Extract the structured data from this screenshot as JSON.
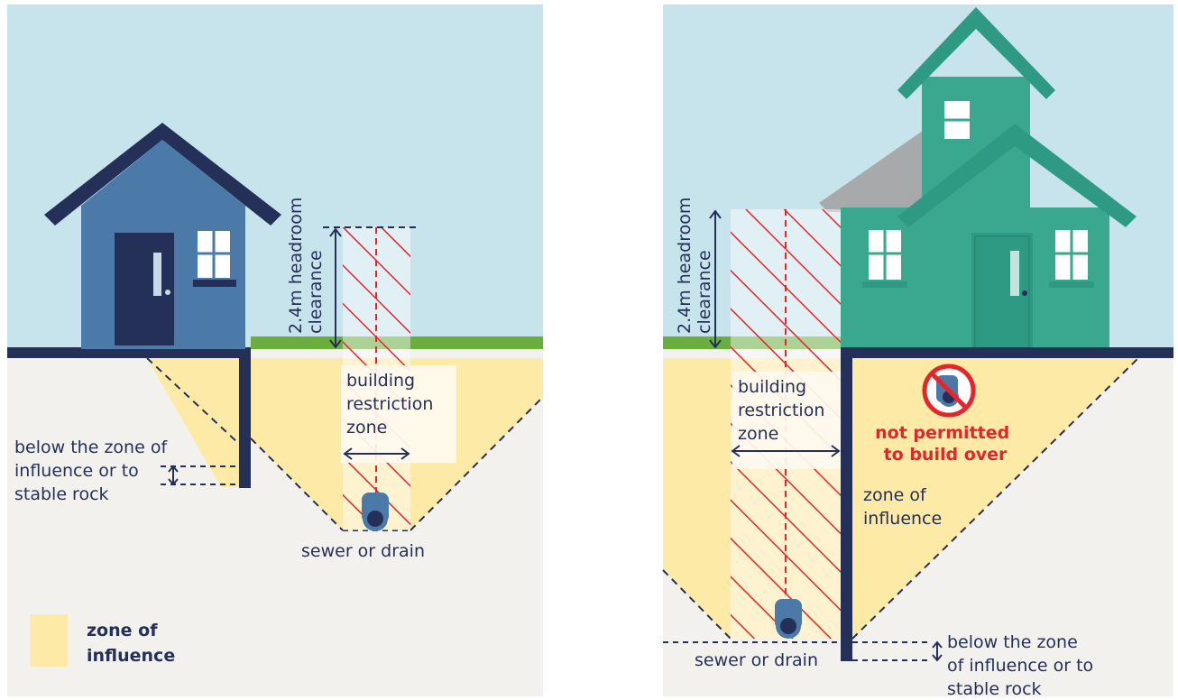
{
  "left_panel": {
    "headroom_line1": "2.4m headroom",
    "headroom_line2": "clearance",
    "restriction_line1": "building",
    "restriction_line2": "restriction",
    "restriction_line3": "zone",
    "footing_line1": "below the zone of",
    "footing_line2": "influence or to",
    "footing_line3": "stable rock",
    "pipe_label": "sewer or drain"
  },
  "legend": {
    "line1": "zone of",
    "line2": "influence",
    "color": "#fdeaa6"
  },
  "right_panel": {
    "headroom_line1": "2.4m headroom",
    "headroom_line2": "clearance",
    "restriction_line1": "building",
    "restriction_line2": "restriction",
    "restriction_line3": "zone",
    "not_permitted_line1": "not permitted",
    "not_permitted_line2": "to build over",
    "zone_line1": "zone of",
    "zone_line2": "influence",
    "pipe_label": "sewer or drain",
    "footing_line1": "below the zone",
    "footing_line2": "of influence or to",
    "footing_line3": "stable rock"
  },
  "colors": {
    "sky": "#c7e4ec",
    "ground": "#f3f1ee",
    "grass": "#6cae3e",
    "navy": "#253058",
    "blue_house": "#4b79a8",
    "green_house": "#3aa78f",
    "hatch_red": "#e3262c",
    "zone_yellow": "#fdeaa6"
  }
}
